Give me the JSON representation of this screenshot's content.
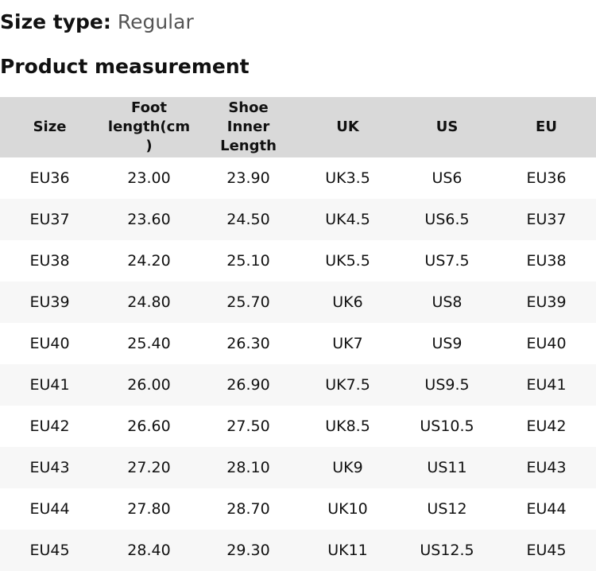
{
  "size_type": {
    "label": "Size type:",
    "value": "Regular"
  },
  "section_title": "Product measurement",
  "table": {
    "headers": [
      "Size",
      "Foot length(cm)",
      "Shoe Inner Length",
      "UK",
      "US",
      "EU"
    ],
    "rows": [
      [
        "EU36",
        "23.00",
        "23.90",
        "UK3.5",
        "US6",
        "EU36"
      ],
      [
        "EU37",
        "23.60",
        "24.50",
        "UK4.5",
        "US6.5",
        "EU37"
      ],
      [
        "EU38",
        "24.20",
        "25.10",
        "UK5.5",
        "US7.5",
        "EU38"
      ],
      [
        "EU39",
        "24.80",
        "25.70",
        "UK6",
        "US8",
        "EU39"
      ],
      [
        "EU40",
        "25.40",
        "26.30",
        "UK7",
        "US9",
        "EU40"
      ],
      [
        "EU41",
        "26.00",
        "26.90",
        "UK7.5",
        "US9.5",
        "EU41"
      ],
      [
        "EU42",
        "26.60",
        "27.50",
        "UK8.5",
        "US10.5",
        "EU42"
      ],
      [
        "EU43",
        "27.20",
        "28.10",
        "UK9",
        "US11",
        "EU43"
      ],
      [
        "EU44",
        "27.80",
        "28.70",
        "UK10",
        "US12",
        "EU44"
      ],
      [
        "EU45",
        "28.40",
        "29.30",
        "UK11",
        "US12.5",
        "EU45"
      ]
    ]
  },
  "colors": {
    "header_bg": "#d9d9d9",
    "alt_row_bg": "#f7f7f7"
  }
}
